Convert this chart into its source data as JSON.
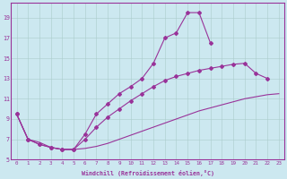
{
  "xlabel": "Windchill (Refroidissement éolien,°C)",
  "background_color": "#cce8f0",
  "line_color": "#993399",
  "grid_color": "#aacccc",
  "xlim": [
    -0.5,
    23.5
  ],
  "ylim": [
    5,
    20.5
  ],
  "xticks": [
    0,
    1,
    2,
    3,
    4,
    5,
    6,
    7,
    8,
    9,
    10,
    11,
    12,
    13,
    14,
    15,
    16,
    17,
    18,
    19,
    20,
    21,
    22,
    23
  ],
  "yticks": [
    5,
    7,
    9,
    11,
    13,
    15,
    17,
    19
  ],
  "line1_x": [
    0,
    1,
    2,
    3,
    4,
    5,
    6,
    7,
    8,
    9,
    10,
    11,
    12,
    13,
    14,
    15,
    16,
    17,
    18,
    19,
    20,
    21,
    22,
    23
  ],
  "line1_y": [
    9.5,
    7.0,
    6.7,
    6.2,
    6.0,
    6.0,
    6.1,
    6.3,
    6.6,
    7.0,
    7.4,
    7.8,
    8.2,
    8.6,
    9.0,
    9.4,
    9.8,
    10.1,
    10.4,
    10.7,
    11.0,
    11.2,
    11.4,
    11.5
  ],
  "line2_x": [
    0,
    1,
    2,
    3,
    4,
    5,
    6,
    7,
    8,
    9,
    10,
    11,
    12,
    13,
    14,
    15,
    16,
    17,
    18,
    19,
    20,
    21,
    22
  ],
  "line2_y": [
    9.5,
    7.0,
    6.5,
    6.2,
    6.0,
    6.0,
    7.0,
    8.2,
    9.2,
    10.0,
    10.8,
    11.5,
    12.2,
    12.8,
    13.2,
    13.5,
    13.8,
    14.0,
    14.2,
    14.4,
    14.5,
    13.5,
    13.0
  ],
  "line3_x": [
    0,
    1,
    2,
    3,
    4,
    5,
    6,
    7,
    8,
    9,
    10,
    11,
    12,
    13,
    14,
    15,
    16,
    17
  ],
  "line3_y": [
    9.5,
    7.0,
    6.5,
    6.2,
    6.0,
    6.0,
    7.5,
    9.5,
    10.5,
    11.5,
    12.2,
    13.0,
    14.5,
    17.0,
    17.5,
    19.5,
    19.5,
    16.5
  ],
  "marker": "D",
  "markersize": 2.0
}
